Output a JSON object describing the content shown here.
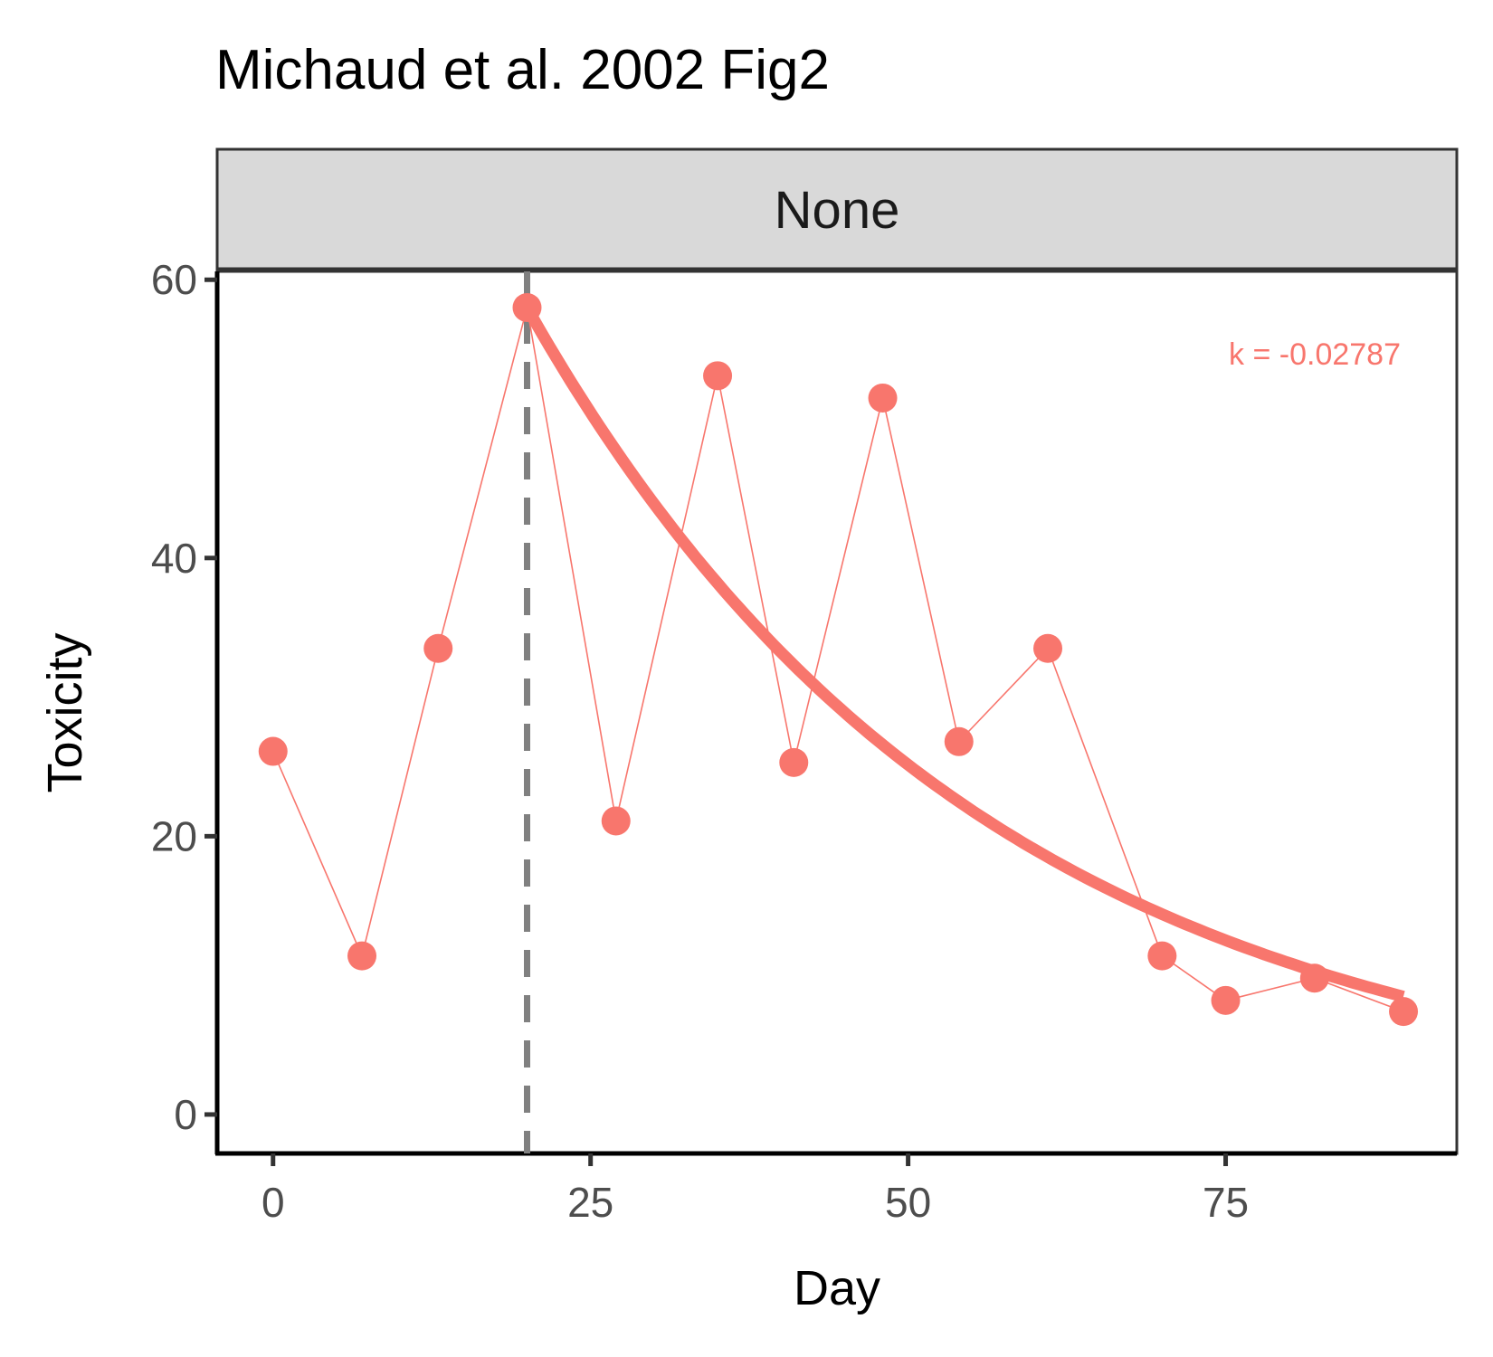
{
  "chart_data": {
    "type": "scatter",
    "title": "Michaud et al. 2002 Fig2",
    "facet_label": "None",
    "xlabel": "Day",
    "ylabel": "Toxicity",
    "xlim": [
      -4.4,
      93.2
    ],
    "ylim": [
      -2.8,
      60.6
    ],
    "x_ticks": [
      0,
      25,
      50,
      75
    ],
    "y_ticks": [
      0,
      20,
      40,
      60
    ],
    "grid": false,
    "legend": "none",
    "series": [
      {
        "points": [
          {
            "x": 0,
            "y": 26.1
          },
          {
            "x": 7,
            "y": 11.4
          },
          {
            "x": 13,
            "y": 33.5
          },
          {
            "x": 20,
            "y": 58.0
          },
          {
            "x": 27,
            "y": 21.1
          },
          {
            "x": 35,
            "y": 53.1
          },
          {
            "x": 41,
            "y": 25.3
          },
          {
            "x": 48,
            "y": 51.5
          },
          {
            "x": 54,
            "y": 26.8
          },
          {
            "x": 61,
            "y": 33.5
          },
          {
            "x": 70,
            "y": 11.4
          },
          {
            "x": 75,
            "y": 8.2
          },
          {
            "x": 82,
            "y": 9.8
          },
          {
            "x": 89,
            "y": 7.4
          }
        ]
      }
    ],
    "fit": {
      "model": "exponential decay",
      "x_start": 20,
      "x_end": 89,
      "y0": 58.0,
      "k": -0.02787
    },
    "reference_line_x": 20,
    "annotation": "k = -0.02787",
    "colors": {
      "series": "#F8766D",
      "reference_line": "#808080",
      "strip_fill": "#D9D9D9"
    }
  }
}
